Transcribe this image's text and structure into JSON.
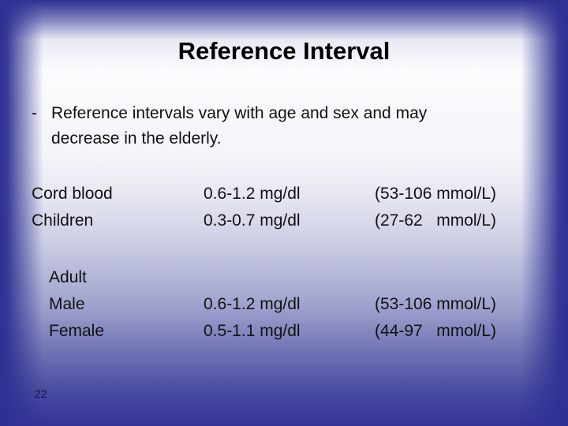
{
  "slide": {
    "title": "Reference Interval"
  },
  "bullet": {
    "marker": "-",
    "lines": [
      "Reference intervals vary with age and sex and may",
      "decrease in the elderly."
    ]
  },
  "table": {
    "rows": [
      {
        "label": "Cord blood",
        "value": "0.6-1.2 mg/dl",
        "range": "(53-106 mmol/L)"
      },
      {
        "label": "Children",
        "value": "0.3-0.7 mg/dl",
        "range": "(27-62   mmol/L)"
      },
      {
        "label": "Adult",
        "value": "",
        "range": ""
      },
      {
        "label": "Male",
        "value": "0.6-1.2 mg/dl",
        "range": "(53-106 mmol/L)"
      },
      {
        "label": "Female",
        "value": "0.5-1.1 mg/dl",
        "range": "(44-97   mmol/L)"
      }
    ]
  },
  "footer": {
    "page_number": "22"
  },
  "colors": {
    "frame_blue": "#2e3192",
    "bottom_blue": "#343397",
    "content_highlight": "#fcfcfe",
    "text": "#111111"
  }
}
